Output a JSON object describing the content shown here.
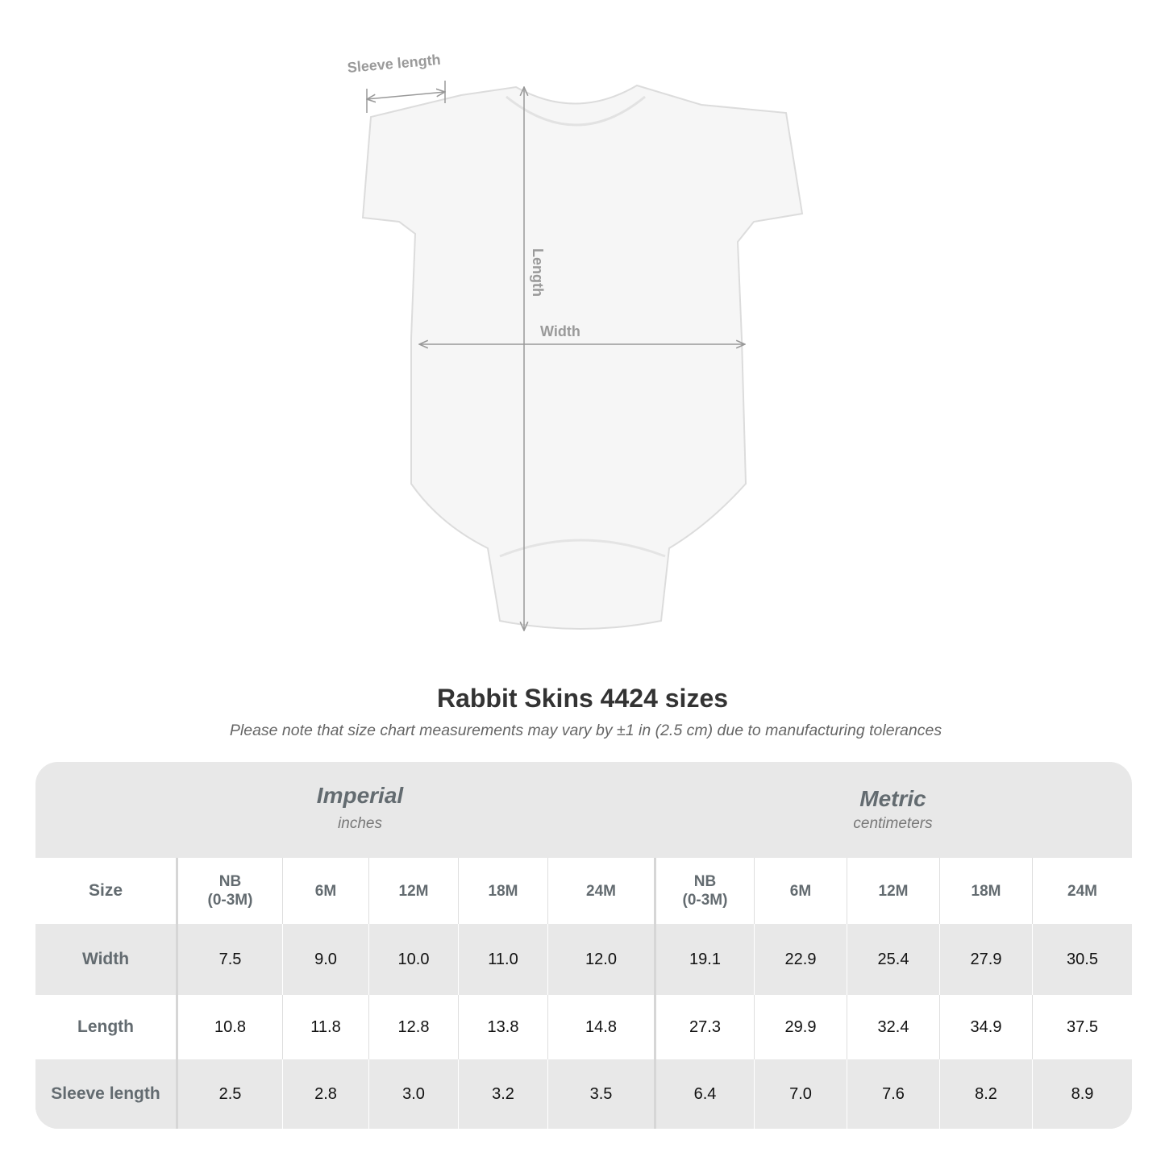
{
  "diagram": {
    "sleeve_label": "Sleeve length",
    "length_label": "Length",
    "width_label": "Width"
  },
  "title": "Rabbit Skins 4424 sizes",
  "note": "Please note that size chart measurements may vary by ±1 in (2.5 cm) due to manufacturing tolerances",
  "table": {
    "imperial": {
      "name": "Imperial",
      "unit": "inches"
    },
    "metric": {
      "name": "Metric",
      "unit": "centimeters"
    },
    "size_label": "Size",
    "sizes": [
      "NB\n(0-3M)",
      "6M",
      "12M",
      "18M",
      "24M",
      "NB\n(0-3M)",
      "6M",
      "12M",
      "18M",
      "24M"
    ],
    "rows": [
      {
        "label": "Width",
        "values": [
          "7.5",
          "9.0",
          "10.0",
          "11.0",
          "12.0",
          "19.1",
          "22.9",
          "25.4",
          "27.9",
          "30.5"
        ]
      },
      {
        "label": "Length",
        "values": [
          "10.8",
          "11.8",
          "12.8",
          "13.8",
          "14.8",
          "27.3",
          "29.9",
          "32.4",
          "34.9",
          "37.5"
        ]
      },
      {
        "label": "Sleeve length",
        "values": [
          "2.5",
          "2.8",
          "3.0",
          "3.2",
          "3.5",
          "6.4",
          "7.0",
          "7.6",
          "8.2",
          "8.9"
        ]
      }
    ]
  }
}
